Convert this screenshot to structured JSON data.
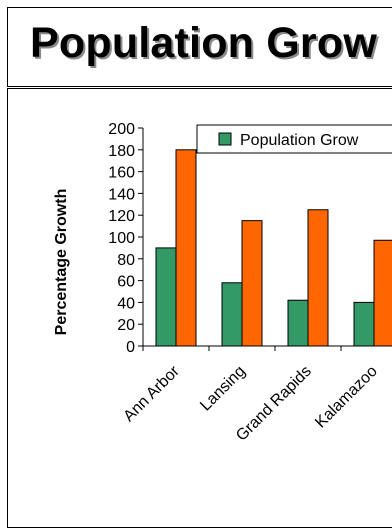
{
  "chart_data": {
    "type": "bar",
    "title": "Population Grow",
    "ylabel": "Percentage Growth",
    "xlabel": "",
    "categories": [
      "Ann Arbor",
      "Lansing",
      "Grand Rapids",
      "Kalamazoo"
    ],
    "series": [
      {
        "name": "Population Grow",
        "color": "#339966",
        "values": [
          90,
          58,
          42,
          40
        ]
      },
      {
        "name": "",
        "color": "#ff6600",
        "values": [
          180,
          115,
          125,
          97
        ]
      }
    ],
    "ylim": [
      0,
      200
    ],
    "yticks": [
      0,
      20,
      40,
      60,
      80,
      100,
      120,
      140,
      160,
      180,
      200
    ],
    "grid": false,
    "legend": "top-right"
  }
}
